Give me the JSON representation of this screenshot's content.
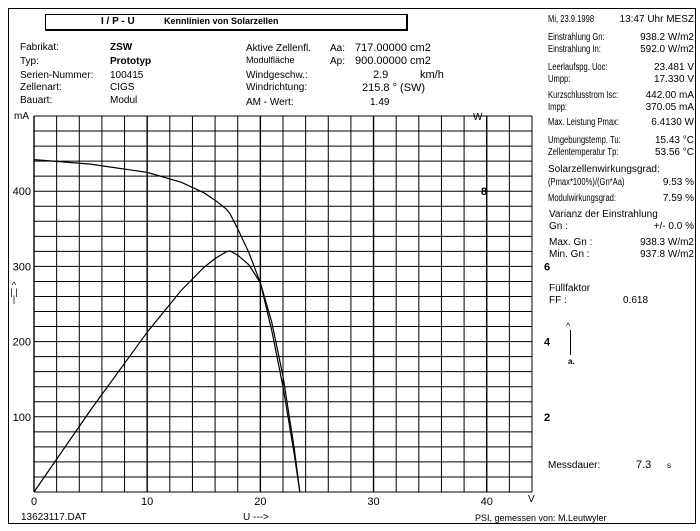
{
  "header": {
    "title_left": "I / P - U",
    "title_right": "Kennlinien von Solarzellen"
  },
  "info": {
    "fabrikat_label": "Fabrikat:",
    "fabrikat": "ZSW",
    "typ_label": "Typ:",
    "typ": "Prototyp",
    "serien_label": "Serien-Nummer:",
    "serien": "100415",
    "zellenart_label": "Zellenart:",
    "zellenart": "CIGS",
    "bauart_label": "Bauart:",
    "bauart": "Modul",
    "aktiv_label": "Aktive Zellenfl.",
    "aktiv_sym": "Aa:",
    "aktiv": "717.00000 cm2",
    "modul_label": "Modulfläche",
    "modul_sym": "Ap:",
    "modul": "900.00000 cm2",
    "wind_label": "Windgeschw.:",
    "wind": "2.9",
    "wind_unit": "km/h",
    "windr_label": "Windrichtung:",
    "windr": "215.8 ° (SW)",
    "am_label": "AM - Wert:",
    "am": "1.49"
  },
  "right": {
    "date": "Mi, 23.9.1998",
    "time": "13:47 Uhr MESZ",
    "rows": [
      {
        "label": "Einstrahlung Gn:",
        "value": "938.2 W/m2"
      },
      {
        "label": "Einstrahlung  In:",
        "value": "592.0 W/m2"
      },
      {
        "label": "Leerlaufspg. Uoc:",
        "value": "23.481 V"
      },
      {
        "label": "Umpp:",
        "value": "17.330 V"
      },
      {
        "label": "Kurzschlusstrom Isc:",
        "value": "442.00 mA"
      },
      {
        "label": "Impp:",
        "value": "370.05 mA"
      },
      {
        "label": "Max. Leistung Pmax:",
        "value": "6.4130 W"
      },
      {
        "label": "Umgebungstemp. Tu:",
        "value": "15.43   °C"
      },
      {
        "label": "Zellentemperatur Tp:",
        "value": "53.56   °C"
      }
    ],
    "eff_title": "Solarzellenwirkungsgrad:",
    "eff_formula": "(Pmax*100%)/(Gn*Aa)",
    "eff_value": "9.53   %",
    "modul_eff_label": "Modulwirkungsgrad:",
    "modul_eff_value": "7.59   %",
    "varianz_title": "Varianz der Einstrahlung",
    "varianz_label": "Gn      :",
    "varianz_value": "+/- 0.0 %",
    "max_gn_label": "Max. Gn :",
    "max_gn_value": "938.3 W/m2",
    "min_gn_label": "Min.  Gn :",
    "min_gn_value": "937.8 W/m2",
    "ff_title": "Füllfaktor",
    "ff_label": "FF       :",
    "ff_value": "0.618",
    "power_axis_arrow": "a.",
    "messdauer_label": "Messdauer:",
    "messdauer_value": "7.3",
    "messdauer_unit": "s"
  },
  "footer": {
    "file": "13623117.DAT",
    "xarrow": "U --->",
    "credit": "PSI,  gemessen  von: M.Leutwyler"
  },
  "chart_data": {
    "type": "line",
    "title": "I / P - U Kennlinien von Solarzellen",
    "xlabel": "U --->",
    "x_unit": "V",
    "ylabel": "mA",
    "y_arrow": "^ | | |",
    "y2label": "W",
    "xlim": [
      0,
      44
    ],
    "ylim": [
      0,
      500
    ],
    "y2lim": [
      0,
      10
    ],
    "grid": true,
    "x_ticks": [
      0,
      10,
      20,
      30,
      40
    ],
    "y_ticks": [
      100,
      200,
      300,
      400
    ],
    "y2_ticks": [
      2,
      4,
      6,
      8
    ],
    "series": [
      {
        "name": "I (mA)",
        "axis": "left",
        "x": [
          0,
          5,
          10,
          13,
          15,
          16,
          17,
          17.33,
          18,
          19,
          20,
          21,
          22,
          23,
          23.48
        ],
        "y": [
          442,
          436,
          425,
          412,
          398,
          388,
          376,
          370,
          350,
          318,
          278,
          215,
          140,
          50,
          0
        ]
      },
      {
        "name": "P (W)",
        "axis": "right",
        "x": [
          0,
          5,
          10,
          13,
          15,
          16,
          17,
          17.33,
          18,
          19,
          20,
          21,
          22,
          23,
          23.48
        ],
        "y": [
          0,
          2.18,
          4.25,
          5.36,
          5.97,
          6.21,
          6.39,
          6.41,
          6.3,
          6.04,
          5.56,
          4.52,
          3.08,
          1.15,
          0
        ]
      }
    ]
  }
}
